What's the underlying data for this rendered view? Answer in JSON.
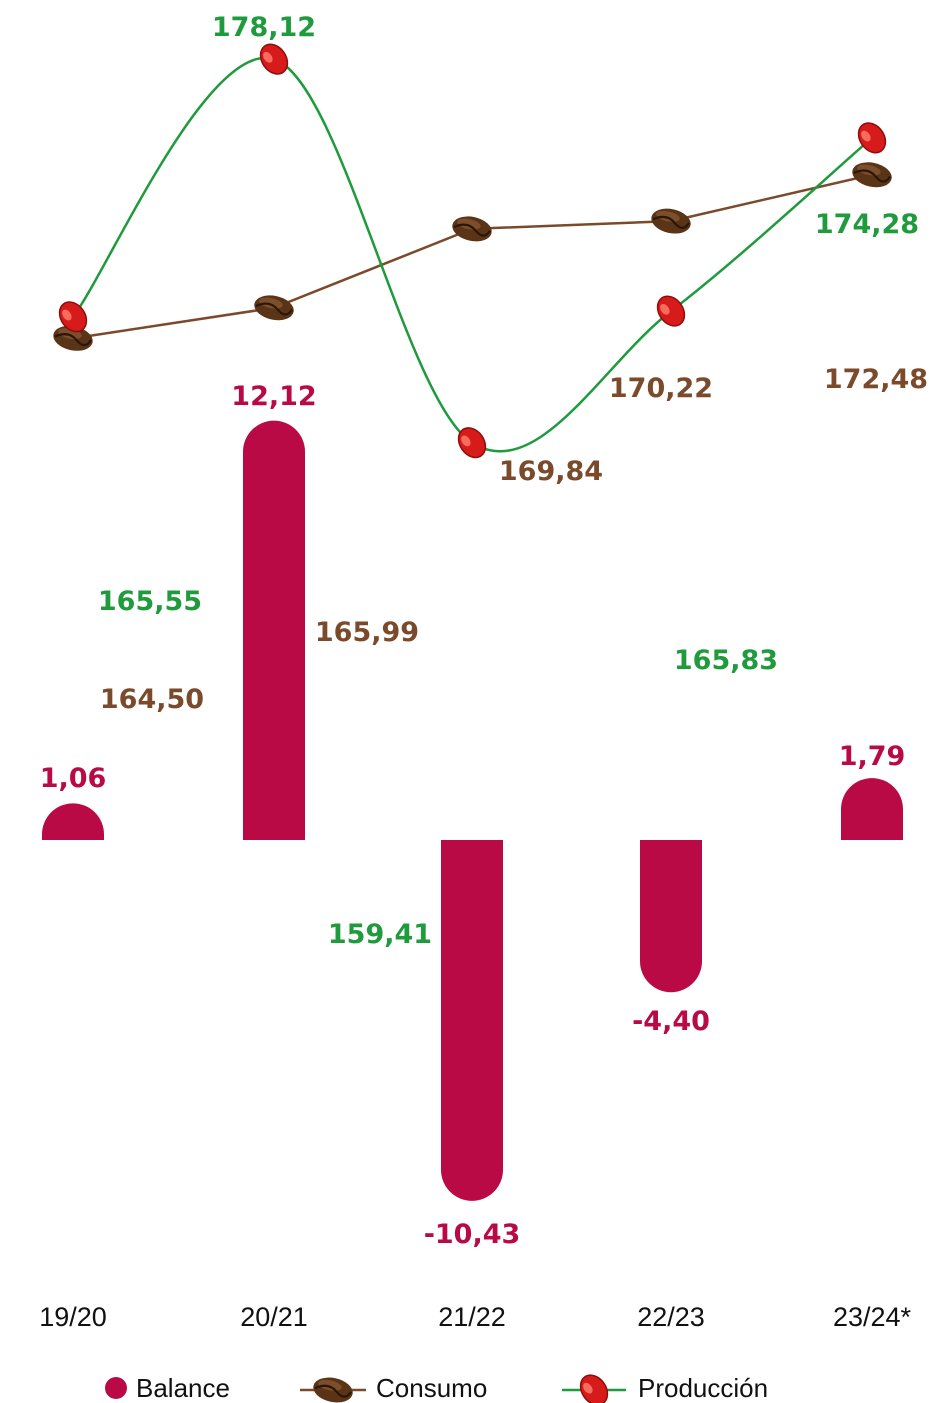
{
  "chart_data": {
    "type": "bar",
    "categories": [
      "19/20",
      "20/21",
      "21/22",
      "22/23",
      "23/24*"
    ],
    "series": [
      {
        "name": "Balance",
        "kind": "bar",
        "values": [
          1.06,
          12.12,
          -10.43,
          -4.4,
          1.79
        ],
        "labels": [
          "1,06",
          "12,12",
          "-10,43",
          "-4,40",
          "1,79"
        ]
      },
      {
        "name": "Consumo",
        "kind": "line",
        "values": [
          164.5,
          165.99,
          169.84,
          170.22,
          172.48
        ],
        "labels": [
          "164,50",
          "165,99",
          "169,84",
          "170,22",
          "172,48"
        ]
      },
      {
        "name": "Producción",
        "kind": "line",
        "values": [
          165.55,
          178.12,
          159.41,
          165.83,
          174.28
        ],
        "labels": [
          "165,55",
          "178,12",
          "159,41",
          "165,83",
          "174,28"
        ]
      }
    ],
    "legend_position": "bottom",
    "colors": {
      "balance": "#b90a45",
      "consumo": "#7a4a2b",
      "produccion": "#1f9a3c"
    },
    "icons": {
      "consumo": "coffee-bean-icon",
      "produccion": "coffee-cherry-icon",
      "balance": "dot-icon"
    }
  }
}
